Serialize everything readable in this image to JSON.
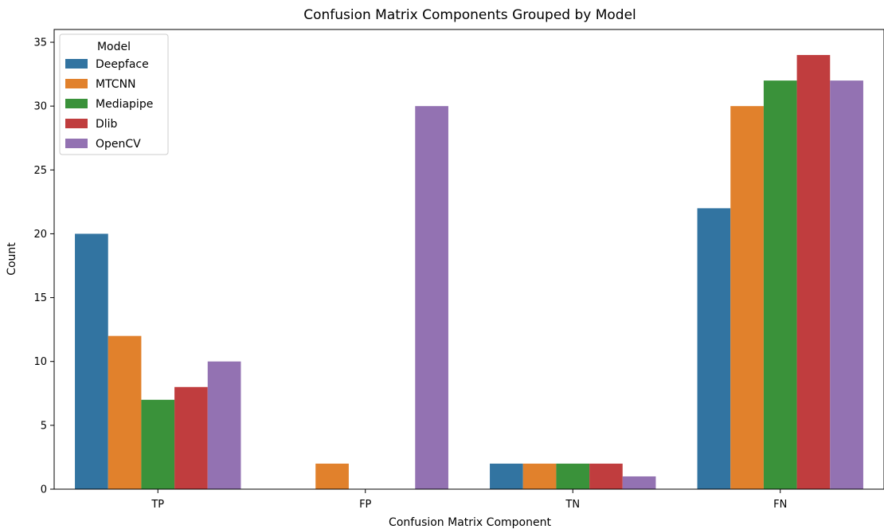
{
  "chart_data": {
    "type": "bar",
    "title": "Confusion Matrix Components Grouped by Model",
    "xlabel": "Confusion Matrix Component",
    "ylabel": "Count",
    "categories": [
      "TP",
      "FP",
      "TN",
      "FN"
    ],
    "ylim": [
      0,
      36
    ],
    "yticks": [
      0,
      5,
      10,
      15,
      20,
      25,
      30,
      35
    ],
    "grid": false,
    "legend": {
      "title": "Model",
      "placement": "top-left"
    },
    "series": [
      {
        "name": "Deepface",
        "color": "#3274a1",
        "values": [
          20,
          0,
          2,
          22
        ]
      },
      {
        "name": "MTCNN",
        "color": "#e1812c",
        "values": [
          12,
          2,
          2,
          30
        ]
      },
      {
        "name": "Mediapipe",
        "color": "#3a923a",
        "values": [
          7,
          0,
          2,
          32
        ]
      },
      {
        "name": "Dlib",
        "color": "#c03d3e",
        "values": [
          8,
          0,
          2,
          34
        ]
      },
      {
        "name": "OpenCV",
        "color": "#9372b2",
        "values": [
          10,
          30,
          1,
          32
        ]
      }
    ]
  }
}
